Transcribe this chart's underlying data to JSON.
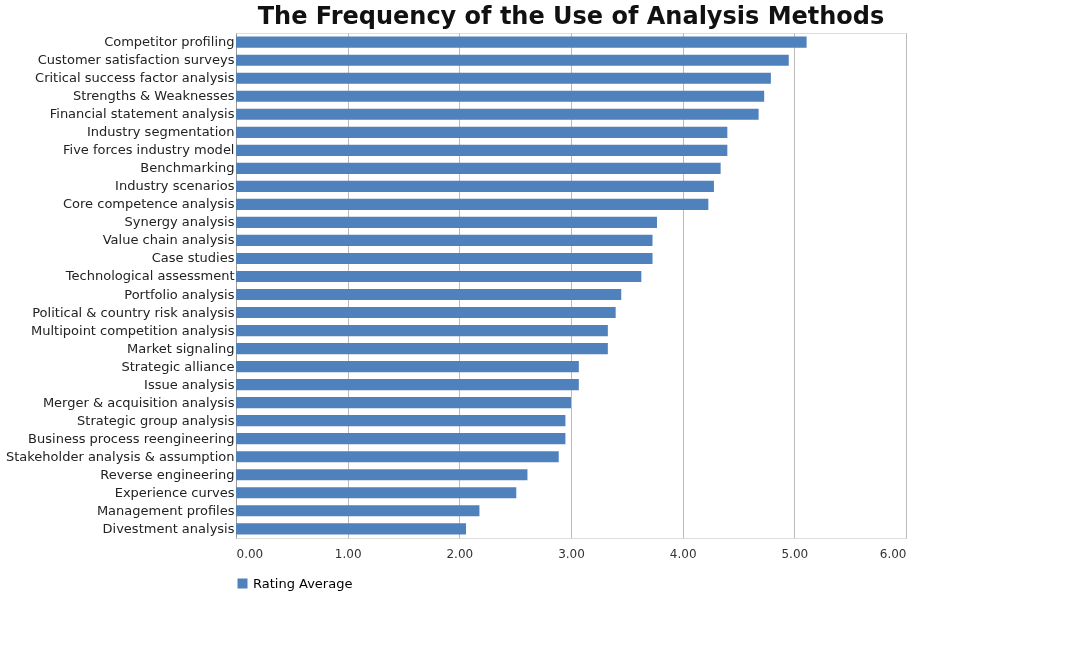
{
  "chart_data": {
    "type": "bar",
    "orientation": "horizontal",
    "title": "The Frequency of the Use of Analysis Methods",
    "categories": [
      "Competitor profiling",
      "Customer satisfaction surveys",
      "Critical success factor analysis",
      "Strengths & Weaknesses",
      "Financial statement analysis",
      "Industry segmentation",
      "Five forces industry model",
      "Benchmarking",
      "Industry scenarios",
      "Core competence analysis",
      "Synergy analysis",
      "Value chain analysis",
      "Case studies",
      "Technological assessment",
      "Portfolio analysis",
      "Political & country risk analysis",
      "Multipoint competition analysis",
      "Market signaling",
      "Strategic alliance",
      "Issue analysis",
      "Merger & acquisition analysis",
      "Strategic group analysis",
      "Business process reengineering",
      "Stakeholder analysis & assumption",
      "Reverse engineering",
      "Experience curves",
      "Management profiles",
      "Divestment analysis"
    ],
    "series": [
      {
        "name": "Rating Average",
        "color": "#4f81bd",
        "values": [
          5.11,
          4.95,
          4.79,
          4.73,
          4.68,
          4.4,
          4.4,
          4.34,
          4.28,
          4.23,
          3.77,
          3.73,
          3.73,
          3.63,
          3.45,
          3.4,
          3.33,
          3.33,
          3.07,
          3.07,
          3.0,
          2.95,
          2.95,
          2.89,
          2.61,
          2.51,
          2.18,
          2.06
        ]
      }
    ],
    "xlim": [
      0,
      6
    ],
    "xticks": [
      {
        "value": 0,
        "label": "0.00"
      },
      {
        "value": 1,
        "label": "1.00"
      },
      {
        "value": 2,
        "label": "2.00"
      },
      {
        "value": 3,
        "label": "3.00"
      },
      {
        "value": 4,
        "label": "4.00"
      },
      {
        "value": 5,
        "label": "5.00"
      },
      {
        "value": 6,
        "label": "6.00"
      }
    ],
    "grid": "x",
    "legend": "bottom"
  }
}
